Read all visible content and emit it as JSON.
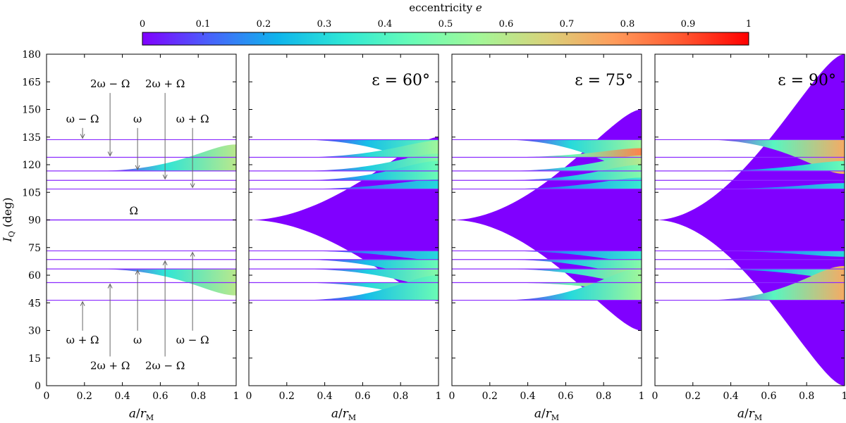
{
  "chart_data": {
    "type": "area",
    "colorbar": {
      "label": "eccentricity e",
      "label_plain": "eccentricity",
      "label_italic": "e",
      "range": [
        0,
        1
      ],
      "ticks": [
        0,
        0.1,
        0.2,
        0.3,
        0.4,
        0.5,
        0.6,
        0.7,
        0.8,
        0.9,
        1
      ],
      "tick_labels": [
        "0",
        "0.1",
        "0.2",
        "0.3",
        "0.4",
        "0.5",
        "0.6",
        "0.7",
        "0.8",
        "0.9",
        "1"
      ],
      "colormap": [
        "#8000ff",
        "#4862fb",
        "#0fb4ec",
        "#2fe8d5",
        "#68fcb7",
        "#a3f798",
        "#d9d27a",
        "#ff9c5b",
        "#ff5830",
        "#ff0000"
      ]
    },
    "shared_axes": {
      "xlabel": "a/r_M",
      "ylabel": "I_Q (deg)",
      "xlim": [
        0,
        1
      ],
      "ylim": [
        0,
        180
      ],
      "xticks": [
        0,
        0.2,
        0.4,
        0.6,
        0.8,
        1
      ],
      "xtick_labels": [
        "0",
        "0.2",
        "0.4",
        "0.6",
        "0.8",
        "1"
      ],
      "yticks": [
        0,
        15,
        30,
        45,
        60,
        75,
        90,
        105,
        120,
        135,
        150,
        165,
        180
      ],
      "ytick_labels": [
        "0",
        "15",
        "30",
        "45",
        "60",
        "75",
        "90",
        "105",
        "120",
        "135",
        "150",
        "165",
        "180"
      ]
    },
    "resonance_lines_deg": [
      46.4,
      56.0,
      63.4,
      68.5,
      73.2,
      106.8,
      111.5,
      116.6,
      124.0,
      133.6
    ],
    "panels": [
      {
        "panel": "eps-0",
        "title": "",
        "bands": [
          {
            "name": "ω (upper)",
            "base": 116.6,
            "end": [
              116.6,
              131.0
            ],
            "e_end": 0.6
          },
          {
            "name": "ω (lower)",
            "base": 63.4,
            "end": [
              49.0,
              63.4
            ],
            "e_end": 0.6
          },
          {
            "name": "Ω",
            "base": 90.0,
            "end": [
              90.0,
              90.0
            ],
            "e_end": 0.0
          }
        ],
        "annotations": [
          {
            "text": "ω − Ω",
            "x": 0.19,
            "y": 133.6,
            "label_y": 143,
            "dir": "down"
          },
          {
            "text": "2ω − Ω",
            "x": 0.335,
            "y": 124.0,
            "label_y": 162,
            "dir": "down"
          },
          {
            "text": "ω",
            "x": 0.48,
            "y": 116.6,
            "label_y": 143,
            "dir": "down"
          },
          {
            "text": "2ω + Ω",
            "x": 0.625,
            "y": 111.5,
            "label_y": 162,
            "dir": "down"
          },
          {
            "text": "ω + Ω",
            "x": 0.77,
            "y": 106.8,
            "label_y": 143,
            "dir": "down"
          },
          {
            "text": "Ω",
            "x": 0.46,
            "y": 90.0,
            "label_y": 93,
            "dir": "none"
          },
          {
            "text": "ω + Ω",
            "x": 0.19,
            "y": 46.4,
            "label_y": 23,
            "dir": "up"
          },
          {
            "text": "2ω + Ω",
            "x": 0.335,
            "y": 56.0,
            "label_y": 9,
            "dir": "up"
          },
          {
            "text": "ω",
            "x": 0.48,
            "y": 63.4,
            "label_y": 23,
            "dir": "up"
          },
          {
            "text": "2ω − Ω",
            "x": 0.625,
            "y": 68.5,
            "label_y": 9,
            "dir": "up"
          },
          {
            "text": "ω − Ω",
            "x": 0.77,
            "y": 73.2,
            "label_y": 23,
            "dir": "up"
          }
        ]
      },
      {
        "panel": "eps-60",
        "title": "ε = 60°",
        "central": {
          "base": 90,
          "end": [
            46,
            135
          ]
        },
        "bands": [
          {
            "base": 133.6,
            "end": [
              120.0,
              133.6
            ],
            "e_end": 0.45
          },
          {
            "base": 124.0,
            "end": [
              124.0,
              133.0
            ],
            "e_end": 0.55
          },
          {
            "base": 116.6,
            "end": [
              116.6,
              126.0
            ],
            "e_end": 0.5
          },
          {
            "base": 111.5,
            "end": [
              111.5,
              122.0
            ],
            "e_end": 0.45
          },
          {
            "base": 106.8,
            "end": [
              106.8,
              112.0
            ],
            "e_end": 0.3
          },
          {
            "base": 73.2,
            "end": [
              68.0,
              73.2
            ],
            "e_end": 0.3
          },
          {
            "base": 68.5,
            "end": [
              58.0,
              68.5
            ],
            "e_end": 0.45
          },
          {
            "base": 63.4,
            "end": [
              54.0,
              63.4
            ],
            "e_end": 0.5
          },
          {
            "base": 56.0,
            "end": [
              47.0,
              56.0
            ],
            "e_end": 0.55
          },
          {
            "base": 46.4,
            "end": [
              46.4,
              60.0
            ],
            "e_end": 0.45
          }
        ]
      },
      {
        "panel": "eps-75",
        "title": "ε = 75°",
        "central": {
          "base": 90,
          "end": [
            30,
            150
          ]
        },
        "bands": [
          {
            "base": 133.6,
            "end": [
              116.0,
              133.6
            ],
            "e_end": 0.55
          },
          {
            "base": 124.0,
            "end": [
              124.0,
              129.0
            ],
            "e_end": 0.82
          },
          {
            "base": 116.6,
            "end": [
              116.6,
              125.0
            ],
            "e_end": 0.6
          },
          {
            "base": 111.5,
            "end": [
              111.5,
              120.0
            ],
            "e_end": 0.5
          },
          {
            "base": 106.8,
            "end": [
              106.8,
              113.0
            ],
            "e_end": 0.35
          },
          {
            "base": 73.2,
            "end": [
              67.0,
              73.2
            ],
            "e_end": 0.35
          },
          {
            "base": 68.5,
            "end": [
              60.0,
              68.5
            ],
            "e_end": 0.5
          },
          {
            "base": 63.4,
            "end": [
              55.0,
              63.4
            ],
            "e_end": 0.6
          },
          {
            "base": 56.0,
            "end": [
              51.0,
              56.0
            ],
            "e_end": 0.82
          },
          {
            "base": 46.4,
            "end": [
              46.4,
              64.0
            ],
            "e_end": 0.55
          }
        ]
      },
      {
        "panel": "eps-90",
        "title": "ε = 90°",
        "central": {
          "base": 90,
          "end": [
            0,
            180
          ]
        },
        "bands": [
          {
            "base": 133.6,
            "end": [
              115.0,
              133.6
            ],
            "e_end": 0.75
          },
          {
            "base": 116.6,
            "end": [
              116.6,
              122.0
            ],
            "e_end": 0.45
          },
          {
            "base": 106.8,
            "end": [
              106.8,
              110.0
            ],
            "e_end": 0.3
          },
          {
            "base": 73.2,
            "end": [
              70.0,
              73.2
            ],
            "e_end": 0.3
          },
          {
            "base": 63.4,
            "end": [
              58.0,
              63.4
            ],
            "e_end": 0.45
          },
          {
            "base": 46.4,
            "end": [
              46.4,
              65.0
            ],
            "e_end": 0.75
          }
        ]
      }
    ]
  }
}
